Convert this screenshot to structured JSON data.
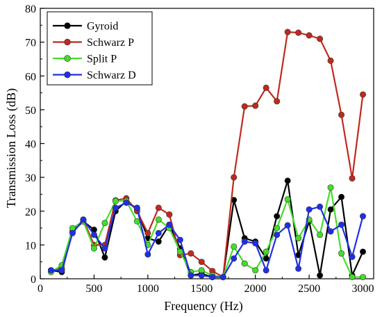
{
  "chart_data": {
    "type": "line",
    "xlabel": "Frequency (Hz)",
    "ylabel": "Transmission Loss (dB)",
    "xlim": [
      0,
      3100
    ],
    "ylim": [
      0,
      80
    ],
    "x_ticks": [
      0,
      500,
      1000,
      1500,
      2000,
      2500,
      3000
    ],
    "y_ticks": [
      0,
      10,
      20,
      30,
      40,
      50,
      60,
      70,
      80
    ],
    "legend_position": "top-left",
    "grid": false,
    "x": [
      100,
      200,
      300,
      400,
      500,
      600,
      700,
      800,
      900,
      1000,
      1100,
      1200,
      1300,
      1400,
      1500,
      1600,
      1700,
      1800,
      1900,
      2000,
      2100,
      2200,
      2300,
      2400,
      2500,
      2600,
      2700,
      2800,
      2900,
      3000
    ],
    "series": [
      {
        "name": "Gyroid",
        "color": "#000000",
        "values": [
          2.5,
          2,
          14,
          17,
          14.5,
          6.3,
          20,
          23,
          20.5,
          12,
          11,
          16,
          9,
          1,
          1.5,
          0.5,
          0.5,
          23.3,
          12,
          11,
          6,
          18.5,
          29,
          7,
          17,
          1,
          20.5,
          24.2,
          1,
          8
        ]
      },
      {
        "name": "Schwarz P",
        "color": "#c0291e",
        "values": [
          2.5,
          3,
          14,
          17.5,
          10,
          10,
          23.2,
          23.8,
          20,
          13.5,
          21,
          19,
          7,
          7.5,
          5,
          2.3,
          0.5,
          30,
          51,
          51.2,
          56.5,
          52.5,
          73,
          72.8,
          72,
          71,
          64.5,
          48.5,
          29.7,
          54.5
        ]
      },
      {
        "name": "Split P",
        "color": "#44dd2a",
        "values": [
          2,
          4,
          15,
          17,
          9,
          16.5,
          23,
          23,
          17,
          10,
          17.5,
          15,
          8,
          2,
          2.5,
          1,
          0.5,
          9.5,
          4.5,
          2.5,
          8,
          15,
          23.5,
          12,
          17.5,
          13,
          27,
          7.5,
          0.5,
          0.5
        ]
      },
      {
        "name": "Schwarz D",
        "color": "#1f2fe8",
        "values": [
          2.5,
          2.5,
          13.5,
          17.5,
          13,
          9,
          21,
          22.5,
          21,
          7.2,
          13.5,
          16,
          11.5,
          1,
          1,
          0.5,
          0.5,
          6,
          11,
          10.5,
          2.5,
          13,
          15.8,
          3,
          20.5,
          21.3,
          14,
          16,
          6.5,
          18.5
        ]
      }
    ]
  }
}
